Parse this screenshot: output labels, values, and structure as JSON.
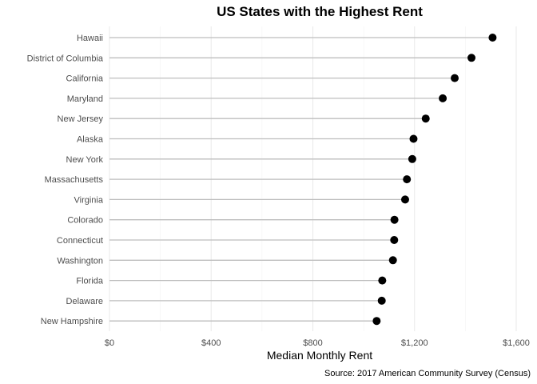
{
  "chart_data": {
    "type": "scatter",
    "subtype": "lollipop",
    "title": "US States with the Highest Rent",
    "xlabel": "Median Monthly Rent",
    "ylabel": "",
    "caption": "Source: 2017 American Community Survey (Census)",
    "xlim": [
      0,
      1600
    ],
    "x_ticks": [
      0,
      400,
      800,
      1200,
      1600
    ],
    "x_tick_labels": [
      "$0",
      "$400",
      "$800",
      "$1,200",
      "$1,600"
    ],
    "grid": "vertical",
    "legend": "none",
    "categories": [
      "Hawaii",
      "District of Columbia",
      "California",
      "Maryland",
      "New Jersey",
      "Alaska",
      "New York",
      "Massachusetts",
      "Virginia",
      "Colorado",
      "Connecticut",
      "Washington",
      "Florida",
      "Delaware",
      "New Hampshire"
    ],
    "values": [
      1507,
      1424,
      1358,
      1311,
      1244,
      1196,
      1191,
      1170,
      1163,
      1121,
      1120,
      1115,
      1073,
      1071,
      1051
    ],
    "colors": {
      "point": "#000000",
      "segment": "#bebebe",
      "grid": "#ebebeb",
      "text": "#4d4d4d"
    }
  }
}
